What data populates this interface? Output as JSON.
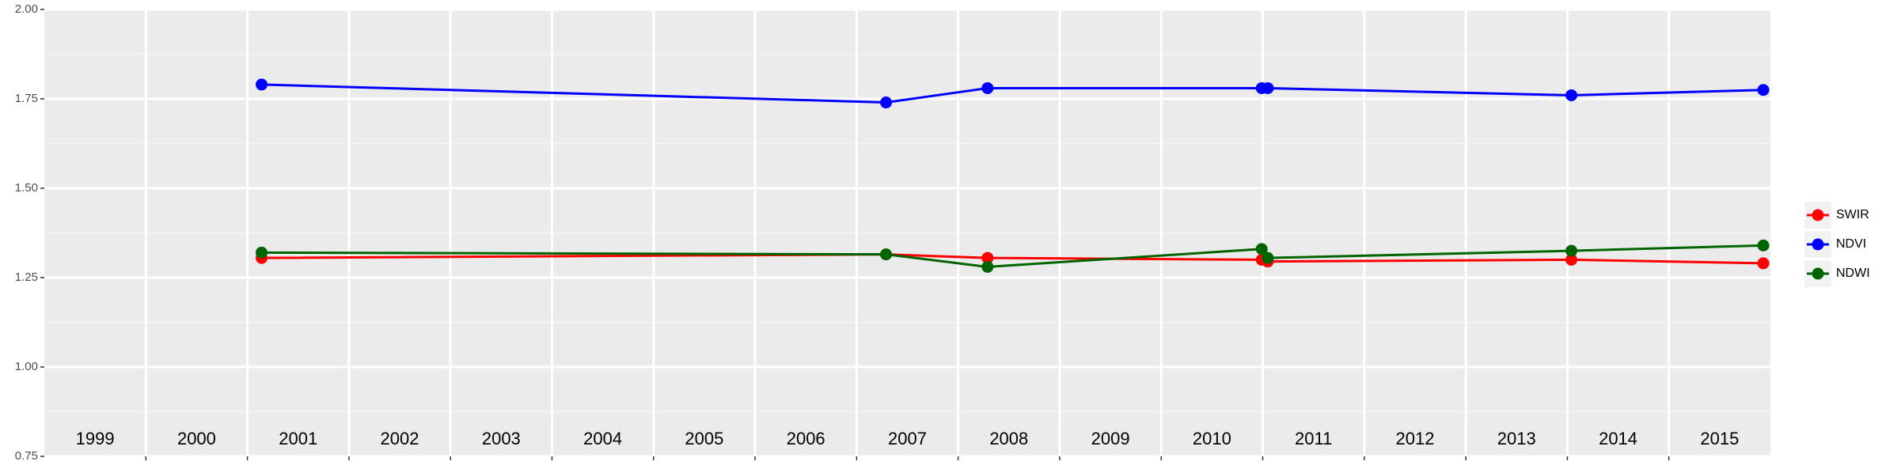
{
  "chart_data": {
    "type": "line",
    "x_is_numeric": true,
    "xlim": [
      1999,
      2016
    ],
    "xgrid": [
      2000,
      2001,
      2002,
      2003,
      2004,
      2005,
      2006,
      2007,
      2008,
      2009,
      2010,
      2011,
      2012,
      2013,
      2014,
      2015
    ],
    "xticks": [
      {
        "value": 1999.5,
        "label": "1999"
      },
      {
        "value": 2000.5,
        "label": "2000"
      },
      {
        "value": 2001.5,
        "label": "2001"
      },
      {
        "value": 2002.5,
        "label": "2002"
      },
      {
        "value": 2003.5,
        "label": "2003"
      },
      {
        "value": 2004.5,
        "label": "2004"
      },
      {
        "value": 2005.5,
        "label": "2005"
      },
      {
        "value": 2006.5,
        "label": "2006"
      },
      {
        "value": 2007.5,
        "label": "2007"
      },
      {
        "value": 2008.5,
        "label": "2008"
      },
      {
        "value": 2009.5,
        "label": "2009"
      },
      {
        "value": 2010.5,
        "label": "2010"
      },
      {
        "value": 2011.5,
        "label": "2011"
      },
      {
        "value": 2012.5,
        "label": "2012"
      },
      {
        "value": 2013.5,
        "label": "2013"
      },
      {
        "value": 2014.5,
        "label": "2014"
      },
      {
        "value": 2015.5,
        "label": "2015"
      }
    ],
    "ylim": [
      0.75,
      2.0
    ],
    "yticks": [
      0.75,
      {
        "value": 1.0,
        "label": "1.00"
      },
      1.25,
      {
        "value": 1.5,
        "label": "1.50"
      },
      1.75,
      {
        "value": 2.0,
        "label": "2.00"
      }
    ],
    "grid": true,
    "legend_position": "right",
    "x": [
      2001.14,
      2007.29,
      2008.29,
      2010.99,
      2011.05,
      2014.04,
      2015.93
    ],
    "series": [
      {
        "name": "SWIR",
        "color": "#ff0000",
        "values": [
          1.305,
          1.315,
          1.305,
          1.3,
          1.295,
          1.3,
          1.29
        ]
      },
      {
        "name": "NDVI",
        "color": "#0000ff",
        "values": [
          1.79,
          1.74,
          1.78,
          1.78,
          1.78,
          1.76,
          1.775
        ]
      },
      {
        "name": "NDWI",
        "color": "#006400",
        "values": [
          1.32,
          1.315,
          1.28,
          1.33,
          1.305,
          1.325,
          1.34
        ]
      }
    ]
  }
}
